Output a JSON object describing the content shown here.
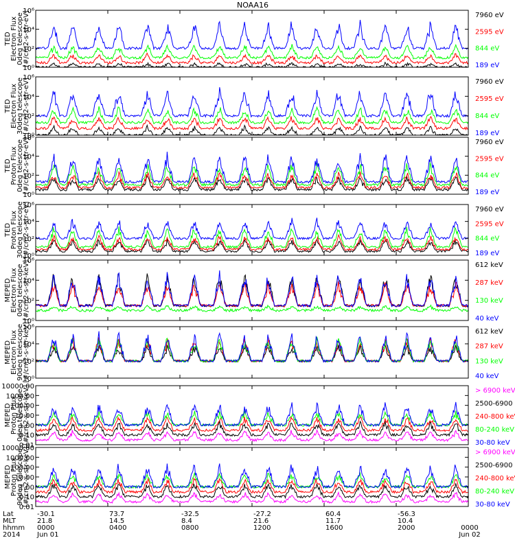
{
  "title": "NOAA16",
  "colors": {
    "blue": "#0000ff",
    "red": "#ff0000",
    "green": "#00ff00",
    "black": "#000000",
    "magenta": "#ff00ff"
  },
  "ephemeris": {
    "row_labels": [
      "Lat",
      "MLT",
      "hhmm",
      "2014"
    ],
    "ticks": [
      {
        "lat": "-30.1",
        "mlt": "21.8",
        "hhmm": "0000",
        "date": "Jun 01"
      },
      {
        "lat": "73.7",
        "mlt": "14.5",
        "hhmm": "0400",
        "date": ""
      },
      {
        "lat": "-32.5",
        "mlt": "8.4",
        "hhmm": "0800",
        "date": ""
      },
      {
        "lat": "-27.2",
        "mlt": "21.6",
        "hhmm": "1200",
        "date": ""
      },
      {
        "lat": "60.4",
        "mlt": "11.7",
        "hhmm": "1600",
        "date": ""
      },
      {
        "lat": "-56.3",
        "mlt": "10.4",
        "hhmm": "2000",
        "date": ""
      },
      {
        "lat": "",
        "mlt": "",
        "hhmm": "0000",
        "date": "Jun 02"
      }
    ]
  },
  "chart_data": [
    {
      "type": "line",
      "ylabel_lines": [
        "TED",
        "Electron Flux",
        "0deg telescope",
        "[#/cm2-s-str-eV]"
      ],
      "y_scale": "log",
      "ylim": [
        1,
        1000000
      ],
      "yticks": [
        "10⁰",
        "10²",
        "10⁴",
        "10⁶"
      ],
      "x_range_hours": [
        0,
        24
      ],
      "series": [
        {
          "name": "7960 eV",
          "color": "#000000",
          "level": [
            1,
            3
          ]
        },
        {
          "name": "2595 eV",
          "color": "#ff0000",
          "level": [
            3,
            30
          ]
        },
        {
          "name": "844 eV",
          "color": "#00ff00",
          "level": [
            10,
            300
          ]
        },
        {
          "name": "189 eV",
          "color": "#0000ff",
          "level": [
            100,
            100000
          ]
        }
      ]
    },
    {
      "type": "line",
      "ylabel_lines": [
        "TED",
        "Electron Flux",
        "30deg telescope",
        "[#/cm2-s-str-eV]"
      ],
      "y_scale": "log",
      "ylim": [
        1,
        1000000
      ],
      "yticks": [
        "10⁰",
        "10²",
        "10⁴",
        "10⁶"
      ],
      "x_range_hours": [
        0,
        24
      ],
      "series": [
        {
          "name": "7960 eV",
          "color": "#000000",
          "level": [
            1,
            10
          ]
        },
        {
          "name": "2595 eV",
          "color": "#ff0000",
          "level": [
            5,
            100
          ]
        },
        {
          "name": "844 eV",
          "color": "#00ff00",
          "level": [
            20,
            1000
          ]
        },
        {
          "name": "189 eV",
          "color": "#0000ff",
          "level": [
            100,
            100000
          ]
        }
      ]
    },
    {
      "type": "line",
      "ylabel_lines": [
        "TED",
        "Proton Flux",
        "0deg telescope",
        "[#/cm2-s-str-eV]"
      ],
      "y_scale": "log",
      "ylim": [
        1,
        1000000
      ],
      "yticks": [
        "10⁰",
        "10²",
        "10⁴",
        "10⁶"
      ],
      "x_range_hours": [
        0,
        24
      ],
      "series": [
        {
          "name": "7960 eV",
          "color": "#000000",
          "level": [
            3,
            100
          ]
        },
        {
          "name": "2595 eV",
          "color": "#ff0000",
          "level": [
            5,
            300
          ]
        },
        {
          "name": "844 eV",
          "color": "#00ff00",
          "level": [
            10,
            3000
          ]
        },
        {
          "name": "189 eV",
          "color": "#0000ff",
          "level": [
            20,
            30000
          ]
        }
      ]
    },
    {
      "type": "line",
      "ylabel_lines": [
        "TED",
        "Proton Flux",
        "30deg telescope",
        "[#/cm2-s-str-eV]"
      ],
      "y_scale": "log",
      "ylim": [
        1,
        1000000
      ],
      "yticks": [
        "10⁰",
        "10²",
        "10⁴",
        "10⁶"
      ],
      "x_range_hours": [
        0,
        24
      ],
      "series": [
        {
          "name": "7960 eV",
          "color": "#000000",
          "level": [
            3,
            100
          ]
        },
        {
          "name": "2595 eV",
          "color": "#ff0000",
          "level": [
            5,
            300
          ]
        },
        {
          "name": "844 eV",
          "color": "#00ff00",
          "level": [
            10,
            3000
          ]
        },
        {
          "name": "189 eV",
          "color": "#0000ff",
          "level": [
            100,
            30000
          ]
        }
      ]
    },
    {
      "type": "line",
      "ylabel_lines": [
        "MEPED",
        "Electron Flux",
        "0deg telescope",
        "[#/cm2-s-str-keV]"
      ],
      "y_scale": "log",
      "ylim": [
        1,
        1000000
      ],
      "yticks": [
        "10⁰",
        "10²",
        "10⁴",
        "10⁶"
      ],
      "x_range_hours": [
        0,
        24
      ],
      "series": [
        {
          "name": "612 keV",
          "color": "#000000",
          "level": [
            30,
            100000
          ]
        },
        {
          "name": "287 keV",
          "color": "#ff0000",
          "level": [
            30,
            10000
          ]
        },
        {
          "name": "130 keV",
          "color": "#00ff00",
          "level": [
            10,
            30
          ]
        },
        {
          "name": "40 keV",
          "color": "#0000ff",
          "level": [
            30,
            100000
          ]
        }
      ]
    },
    {
      "type": "line",
      "ylabel_lines": [
        "MEPED",
        "Electron Flux",
        "90deg telescope",
        "[#/cm2-s-str-keV]"
      ],
      "y_scale": "log",
      "ylim": [
        1,
        1000000
      ],
      "yticks": [
        "10⁰",
        "10²",
        "10⁴",
        "10⁶"
      ],
      "x_range_hours": [
        0,
        24
      ],
      "series": [
        {
          "name": "612 keV",
          "color": "#000000",
          "level": [
            100,
            10000
          ]
        },
        {
          "name": "287 keV",
          "color": "#ff0000",
          "level": [
            100,
            100000
          ]
        },
        {
          "name": "130 keV",
          "color": "#00ff00",
          "level": [
            100,
            100000
          ]
        },
        {
          "name": "40 keV",
          "color": "#0000ff",
          "level": [
            100,
            300000
          ]
        }
      ]
    },
    {
      "type": "line",
      "ylabel_lines": [
        "MEPED",
        "Proton Flux",
        "0deg telescope",
        "[#/cm2-s-str-keV]"
      ],
      "y_scale": "log",
      "ylim": [
        0.01,
        10000
      ],
      "yticks": [
        "0.01",
        "0.10",
        "1.00",
        "10.00",
        "100.00",
        "1000.00",
        "10000.00"
      ],
      "x_range_hours": [
        0,
        24
      ],
      "series": [
        {
          "name": "> 6900 keV",
          "color": "#ff00ff",
          "level": [
            0.03,
            0.3
          ]
        },
        {
          "name": "2500-6900",
          "color": "#000000",
          "level": [
            0.1,
            3
          ]
        },
        {
          "name": "240-800 keV",
          "color": "#ff0000",
          "level": [
            0.3,
            10
          ]
        },
        {
          "name": "80-240 keV",
          "color": "#00ff00",
          "level": [
            1,
            30
          ]
        },
        {
          "name": "30-80 keV",
          "color": "#0000ff",
          "level": [
            1,
            300
          ]
        }
      ]
    },
    {
      "type": "line",
      "ylabel_lines": [
        "MEPED",
        "Proton Flux",
        "90deg telescope",
        "[#/cm2-s-str-keV]"
      ],
      "y_scale": "log",
      "ylim": [
        0.01,
        10000
      ],
      "yticks": [
        "0.01",
        "0.10",
        "1.00",
        "10.00",
        "100.00",
        "1000.00",
        "10000.00"
      ],
      "x_range_hours": [
        0,
        24
      ],
      "series": [
        {
          "name": "> 6900 keV",
          "color": "#ff00ff",
          "level": [
            0.03,
            0.3
          ]
        },
        {
          "name": "2500-6900",
          "color": "#000000",
          "level": [
            0.1,
            3
          ]
        },
        {
          "name": "240-800 keV",
          "color": "#ff0000",
          "level": [
            0.3,
            10
          ]
        },
        {
          "name": "80-240 keV",
          "color": "#00ff00",
          "level": [
            1,
            30
          ]
        },
        {
          "name": "30-80 keV",
          "color": "#0000ff",
          "level": [
            1,
            300
          ]
        }
      ]
    }
  ]
}
